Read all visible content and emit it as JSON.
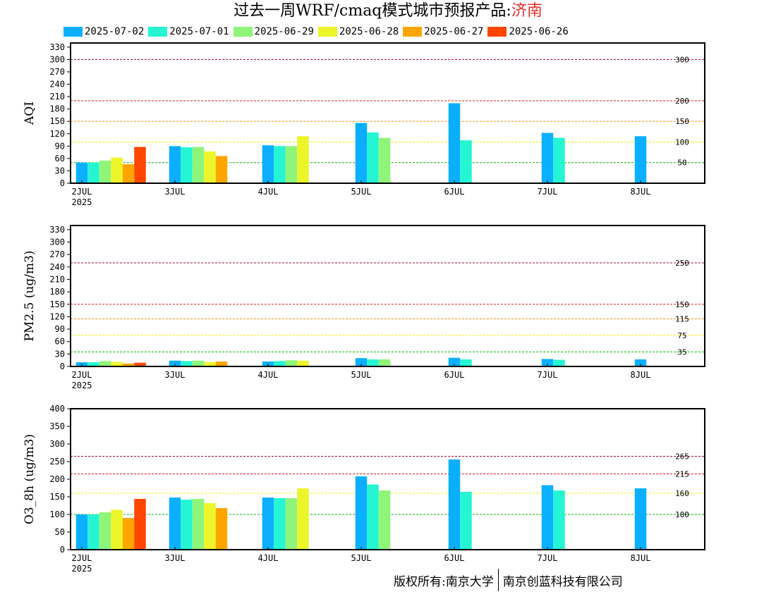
{
  "title": {
    "prefix": "过去一周WRF/cmaq模式城市预报产品:",
    "city": "济南"
  },
  "legend": [
    {
      "label": "2025-07-02",
      "color": "#0ab0ff"
    },
    {
      "label": "2025-07-01",
      "color": "#25f5d2"
    },
    {
      "label": "2025-06-29",
      "color": "#8ff57a"
    },
    {
      "label": "2025-06-28",
      "color": "#ecf52a"
    },
    {
      "label": "2025-06-27",
      "color": "#ffa500"
    },
    {
      "label": "2025-06-26",
      "color": "#ff4500"
    }
  ],
  "footer": {
    "left": "版权所有:南京大学",
    "right": "南京创蓝科技有限公司"
  },
  "chart_data": [
    {
      "type": "bar",
      "ylabel": "AQI",
      "ylim": [
        0,
        340
      ],
      "yticks": [
        "0",
        "30",
        "60",
        "90",
        "120",
        "150",
        "180",
        "210",
        "240",
        "270",
        "300",
        "330"
      ],
      "categories": [
        "2JUL",
        "3JUL",
        "4JUL",
        "5JUL",
        "6JUL",
        "7JUL",
        "8JUL"
      ],
      "first_category_sub": "2025",
      "series": [
        {
          "name": "2025-07-02",
          "values": [
            50,
            90,
            92,
            146,
            194,
            122,
            114
          ]
        },
        {
          "name": "2025-07-01",
          "values": [
            50,
            87,
            90,
            123,
            104,
            110,
            null
          ]
        },
        {
          "name": "2025-06-29",
          "values": [
            55,
            88,
            90,
            110,
            null,
            null,
            null
          ]
        },
        {
          "name": "2025-06-28",
          "values": [
            62,
            77,
            114,
            null,
            null,
            null,
            null
          ]
        },
        {
          "name": "2025-06-27",
          "values": [
            46,
            66,
            null,
            null,
            null,
            null,
            null
          ]
        },
        {
          "name": "2025-06-26",
          "values": [
            88,
            null,
            null,
            null,
            null,
            null,
            null
          ]
        }
      ],
      "thresholds": [
        {
          "value": 300,
          "label": "300",
          "color": "#a0004a"
        },
        {
          "value": 200,
          "label": "200",
          "color": "#e01818"
        },
        {
          "value": 150,
          "label": "150",
          "color": "#ff8c00"
        },
        {
          "value": 100,
          "label": "100",
          "color": "#f0f000"
        },
        {
          "value": 50,
          "label": "50",
          "color": "#00b400"
        }
      ]
    },
    {
      "type": "bar",
      "ylabel": "PM2.5 (ug/m3)",
      "ylim": [
        0,
        340
      ],
      "yticks": [
        "0",
        "30",
        "60",
        "90",
        "120",
        "150",
        "180",
        "210",
        "240",
        "270",
        "300",
        "330"
      ],
      "categories": [
        "2JUL",
        "3JUL",
        "4JUL",
        "5JUL",
        "6JUL",
        "7JUL",
        "8JUL"
      ],
      "first_category_sub": "2025",
      "series": [
        {
          "name": "2025-07-02",
          "values": [
            10,
            14,
            12,
            20,
            21,
            18,
            17
          ]
        },
        {
          "name": "2025-07-01",
          "values": [
            10,
            13,
            13,
            17,
            17,
            16,
            null
          ]
        },
        {
          "name": "2025-06-29",
          "values": [
            13,
            14,
            15,
            17,
            null,
            null,
            null
          ]
        },
        {
          "name": "2025-06-28",
          "values": [
            11,
            10,
            14,
            null,
            null,
            null,
            null
          ]
        },
        {
          "name": "2025-06-27",
          "values": [
            7,
            12,
            null,
            null,
            null,
            null,
            null
          ]
        },
        {
          "name": "2025-06-26",
          "values": [
            9,
            null,
            null,
            null,
            null,
            null,
            null
          ]
        }
      ],
      "thresholds": [
        {
          "value": 250,
          "label": "250",
          "color": "#a0004a"
        },
        {
          "value": 150,
          "label": "150",
          "color": "#e01818"
        },
        {
          "value": 115,
          "label": "115",
          "color": "#ff8c00"
        },
        {
          "value": 75,
          "label": "75",
          "color": "#f0f000"
        },
        {
          "value": 35,
          "label": "35",
          "color": "#00b400"
        }
      ]
    },
    {
      "type": "bar",
      "ylabel": "O3_8h (ug/m3)",
      "ylim": [
        0,
        400
      ],
      "yticks": [
        "0",
        "50",
        "100",
        "150",
        "200",
        "250",
        "300",
        "350",
        "400"
      ],
      "categories": [
        "2JUL",
        "3JUL",
        "4JUL",
        "5JUL",
        "6JUL",
        "7JUL",
        "8JUL"
      ],
      "first_category_sub": "2025",
      "series": [
        {
          "name": "2025-07-02",
          "values": [
            100,
            148,
            148,
            208,
            256,
            183,
            174
          ]
        },
        {
          "name": "2025-07-01",
          "values": [
            100,
            142,
            146,
            185,
            164,
            168,
            null
          ]
        },
        {
          "name": "2025-06-29",
          "values": [
            106,
            144,
            146,
            168,
            null,
            null,
            null
          ]
        },
        {
          "name": "2025-06-28",
          "values": [
            113,
            132,
            174,
            null,
            null,
            null,
            null
          ]
        },
        {
          "name": "2025-06-27",
          "values": [
            90,
            118,
            null,
            null,
            null,
            null,
            null
          ]
        },
        {
          "name": "2025-06-26",
          "values": [
            144,
            null,
            null,
            null,
            null,
            null,
            null
          ]
        }
      ],
      "thresholds": [
        {
          "value": 265,
          "label": "265",
          "color": "#a0004a"
        },
        {
          "value": 215,
          "label": "215",
          "color": "#e01818"
        },
        {
          "value": 160,
          "label": "160",
          "color": "#f0f000"
        },
        {
          "value": 100,
          "label": "100",
          "color": "#00b400"
        }
      ]
    }
  ]
}
